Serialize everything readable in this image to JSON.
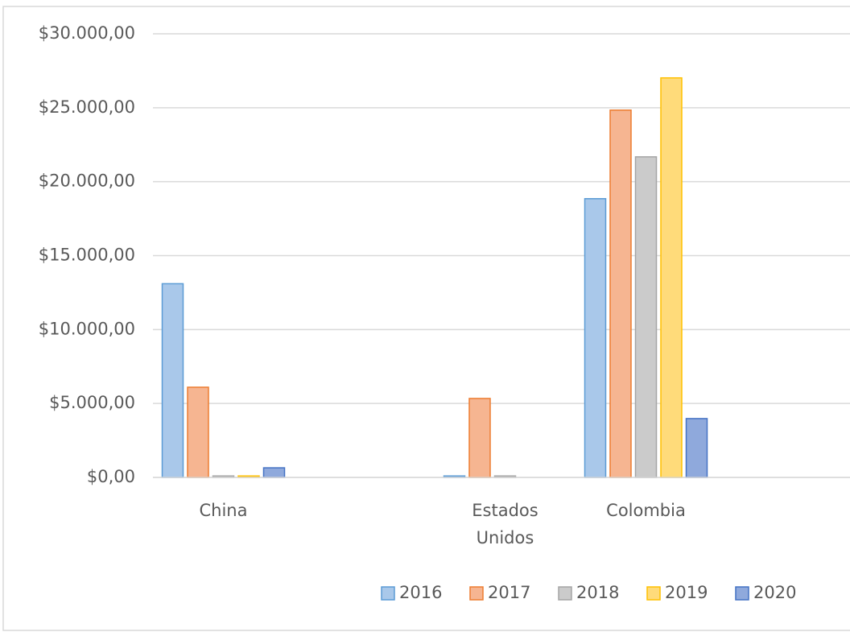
{
  "chart_data": {
    "type": "bar",
    "categories": [
      "China",
      null,
      "Estados Unidos",
      "Colombia",
      null
    ],
    "series": [
      {
        "name": "2016",
        "color": "#a9c8ea",
        "edge": "#5b9bd5",
        "values": [
          13100,
          null,
          100,
          18850,
          null
        ]
      },
      {
        "name": "2017",
        "color": "#f6b591",
        "edge": "#ed7d31",
        "values": [
          6100,
          null,
          5340,
          24840,
          null
        ]
      },
      {
        "name": "2018",
        "color": "#cbcbcb",
        "edge": "#a5a5a5",
        "values": [
          100,
          null,
          100,
          21680,
          null
        ]
      },
      {
        "name": "2019",
        "color": "#ffdb7a",
        "edge": "#ffc000",
        "values": [
          100,
          null,
          null,
          27020,
          null
        ]
      },
      {
        "name": "2020",
        "color": "#8fa9dc",
        "edge": "#4472c4",
        "values": [
          650,
          null,
          null,
          3980,
          null
        ]
      }
    ],
    "ylim": [
      0,
      30000
    ],
    "yticks": [
      {
        "value": 0,
        "label": "$0,00"
      },
      {
        "value": 5000,
        "label": "$5.000,00"
      },
      {
        "value": 10000,
        "label": "$10.000,00"
      },
      {
        "value": 15000,
        "label": "$15.000,00"
      },
      {
        "value": 20000,
        "label": "$20.000,00"
      },
      {
        "value": 25000,
        "label": "$25.000,00"
      },
      {
        "value": 30000,
        "label": "$30.000,00"
      }
    ],
    "grid": true,
    "legend": "bottom"
  }
}
